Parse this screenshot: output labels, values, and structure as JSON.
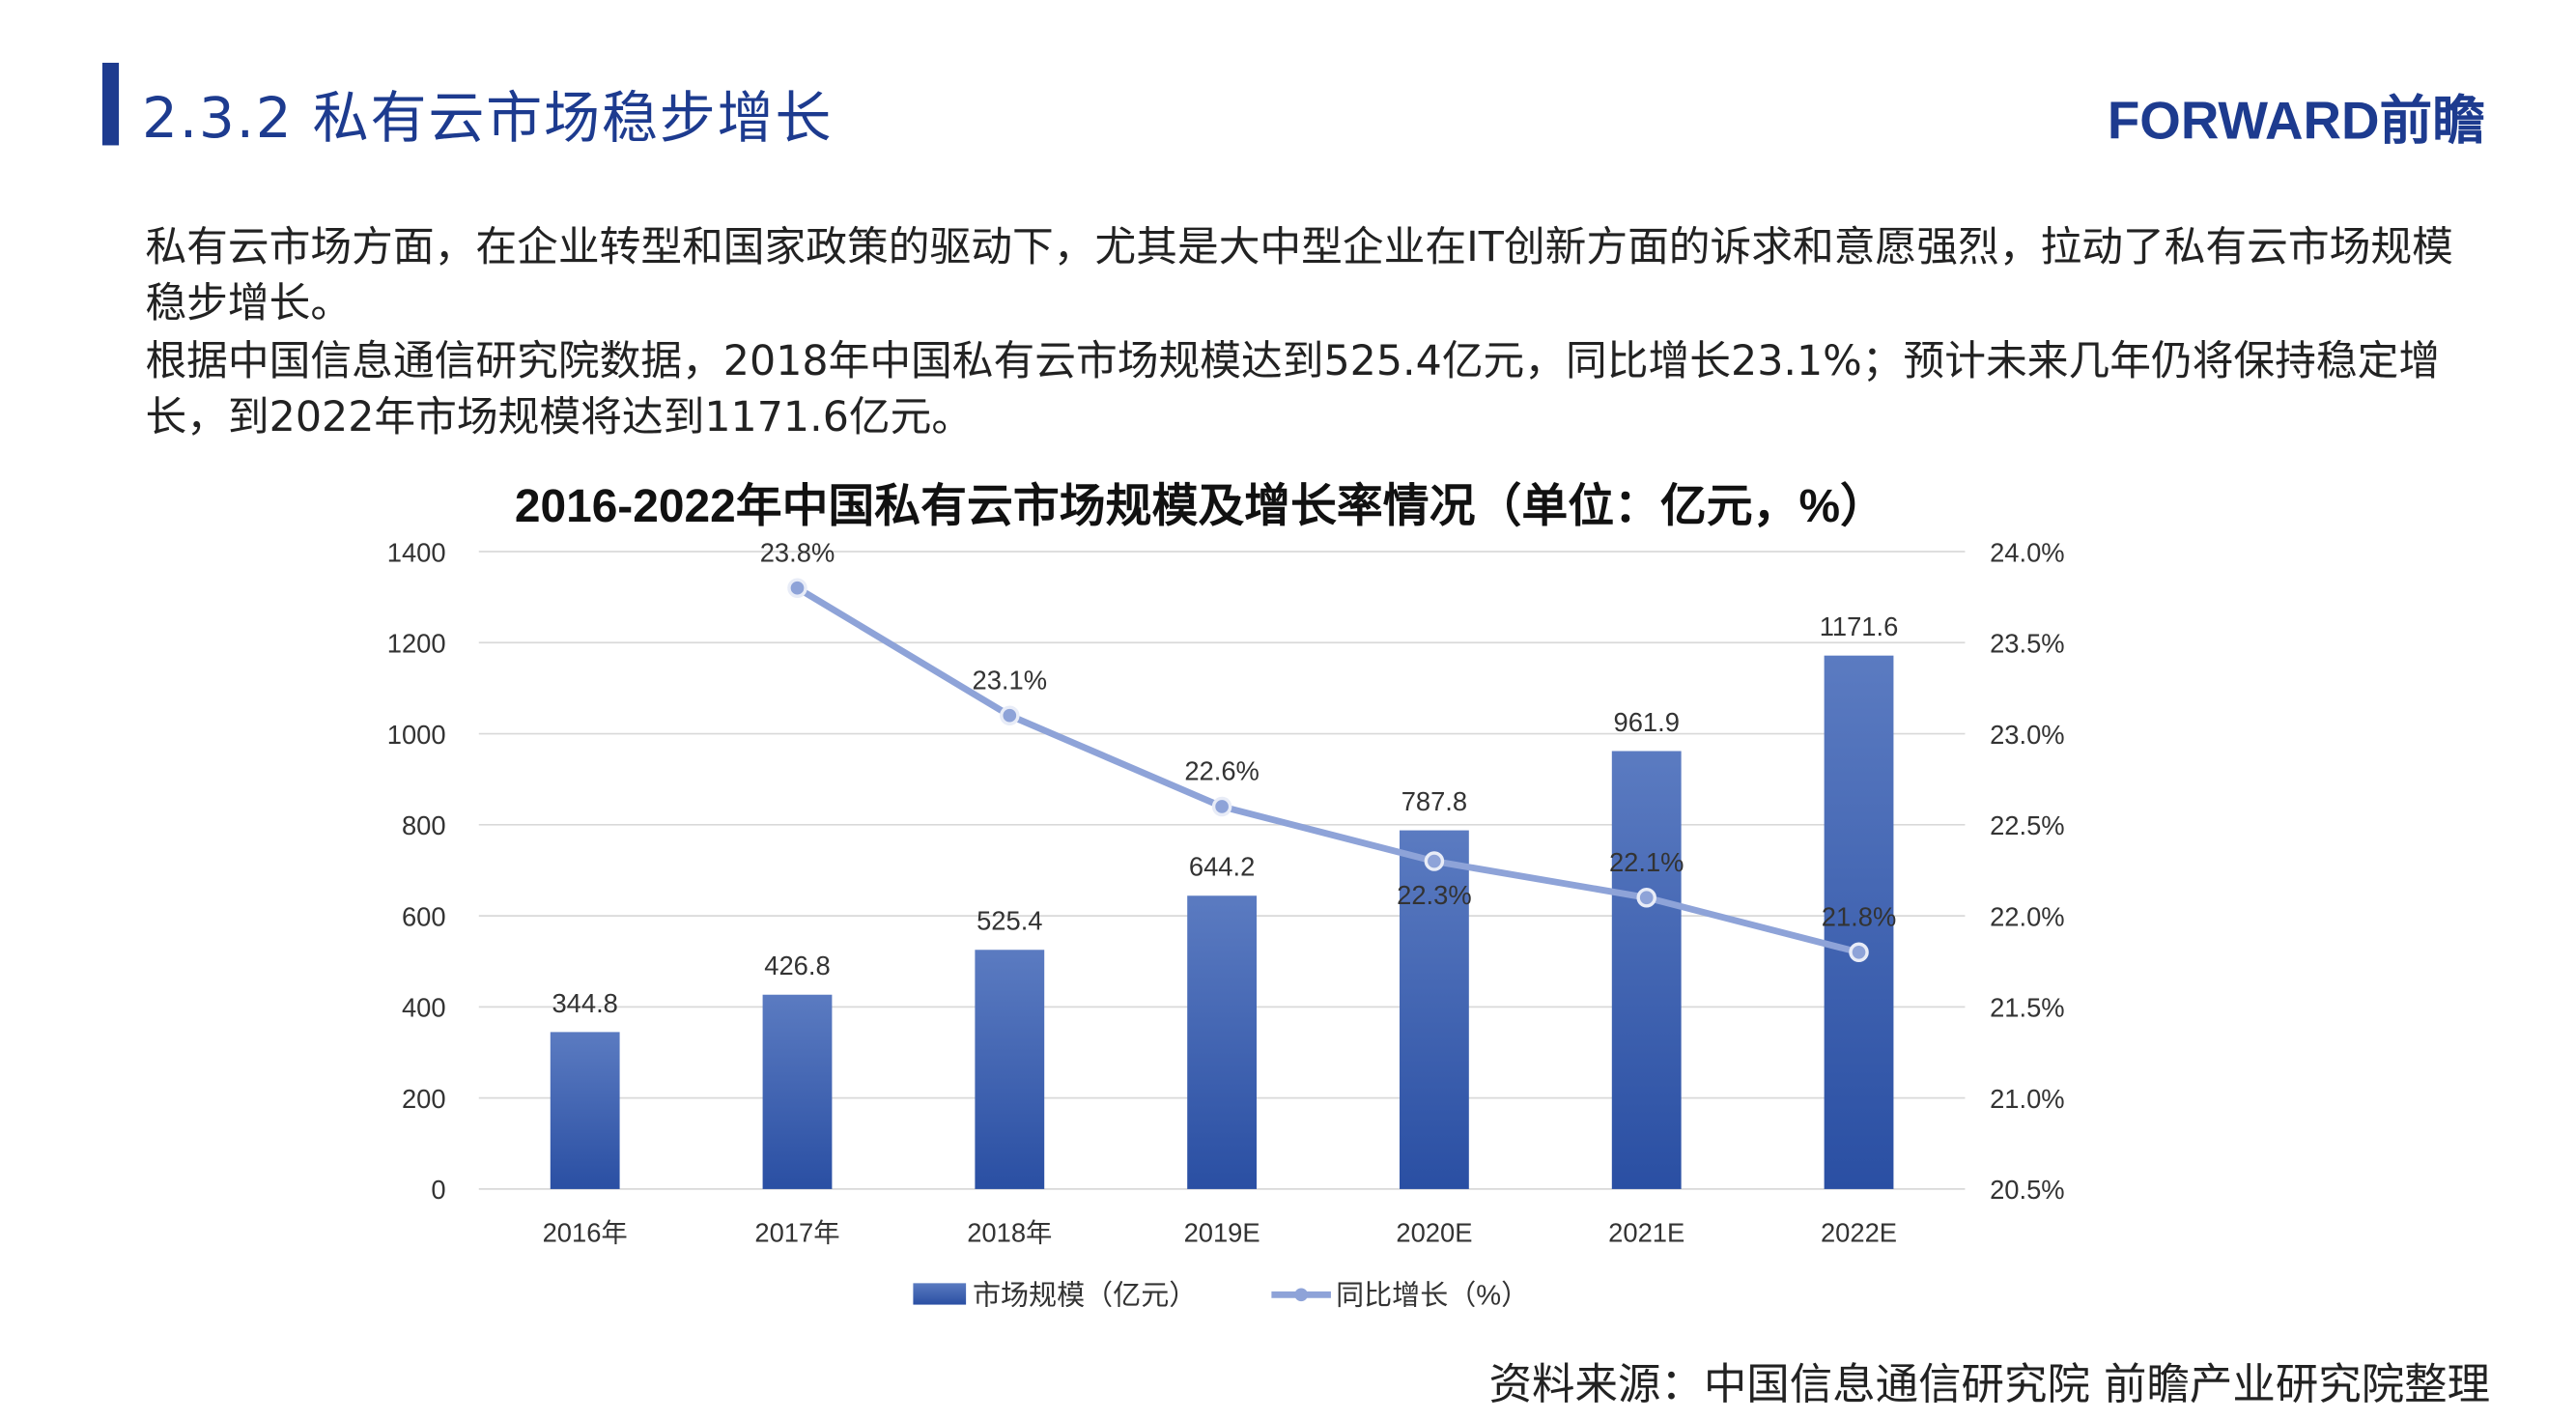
{
  "header": {
    "title": "2.3.2 私有云市场稳步增长",
    "logo": "FORWARD前瞻"
  },
  "body": {
    "paragraph1": "私有云市场方面，在企业转型和国家政策的驱动下，尤其是大中型企业在IT创新方面的诉求和意愿强烈，拉动了私有云市场规模稳步增长。",
    "paragraph2": "根据中国信息通信研究院数据，2018年中国私有云市场规模达到525.4亿元，同比增长23.1%；预计未来几年仍将保持稳定增长，到2022年市场规模将达到1171.6亿元。"
  },
  "source": "资料来源：中国信息通信研究院  前瞻产业研究院整理",
  "chart_data": {
    "type": "bar+line",
    "title": "2016-2022年中国私有云市场规模及增长率情况（单位：亿元，%）",
    "categories": [
      "2016年",
      "2017年",
      "2018年",
      "2019E",
      "2020E",
      "2021E",
      "2022E"
    ],
    "series": [
      {
        "name": "市场规模（亿元）",
        "type": "bar",
        "axis": "left",
        "values": [
          344.8,
          426.8,
          525.4,
          644.2,
          787.8,
          961.9,
          1171.6
        ],
        "labels": [
          "344.8",
          "426.8",
          "525.4",
          "644.2",
          "787.8",
          "961.9",
          "1171.6"
        ],
        "color": "#3a5eb0"
      },
      {
        "name": "同比增长（%）",
        "type": "line",
        "axis": "right",
        "values": [
          null,
          23.8,
          23.1,
          22.6,
          22.3,
          22.1,
          21.8
        ],
        "labels": [
          "",
          "23.8%",
          "23.1%",
          "22.6%",
          "22.3%",
          "22.1%",
          "21.8%"
        ],
        "color": "#8ea3d8"
      }
    ],
    "y_left": {
      "range": [
        0,
        1400
      ],
      "ticks": [
        "0",
        "200",
        "400",
        "600",
        "800",
        "1000",
        "1200",
        "1400"
      ]
    },
    "y_right": {
      "range": [
        20.5,
        24.0
      ],
      "ticks": [
        "20.5%",
        "21.0%",
        "21.5%",
        "22.0%",
        "22.5%",
        "23.0%",
        "23.5%",
        "24.0%"
      ]
    },
    "grid": true,
    "legend": "bottom"
  }
}
